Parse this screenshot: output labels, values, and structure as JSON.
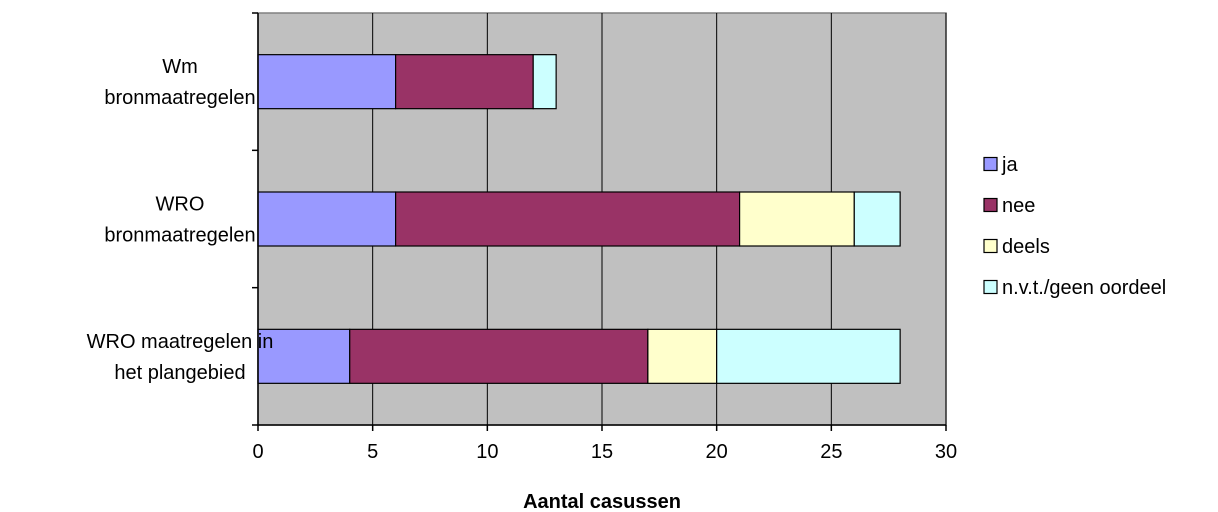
{
  "chart_data": {
    "type": "bar",
    "orientation": "horizontal",
    "stacked": true,
    "categories": [
      [
        "Wm",
        "bronmaatregelen"
      ],
      [
        "WRO",
        "bronmaatregelen"
      ],
      [
        "WRO maatregelen in",
        "het plangebied"
      ]
    ],
    "series": [
      {
        "name": "ja",
        "color": "#9999FF",
        "values": [
          6,
          6,
          4
        ]
      },
      {
        "name": "nee",
        "color": "#993366",
        "values": [
          6,
          15,
          13
        ]
      },
      {
        "name": "deels",
        "color": "#FFFFCC",
        "values": [
          0,
          5,
          3
        ]
      },
      {
        "name": "n.v.t./geen oordeel",
        "color": "#CCFFFF",
        "values": [
          1,
          2,
          8
        ]
      }
    ],
    "xlabel": "Aantal casussen",
    "ylabel": "",
    "xlim": [
      0,
      30
    ],
    "xticks": [
      0,
      5,
      10,
      15,
      20,
      25,
      30
    ],
    "grid": true,
    "plot_background": "#C0C0C0",
    "legend_position": "right"
  }
}
